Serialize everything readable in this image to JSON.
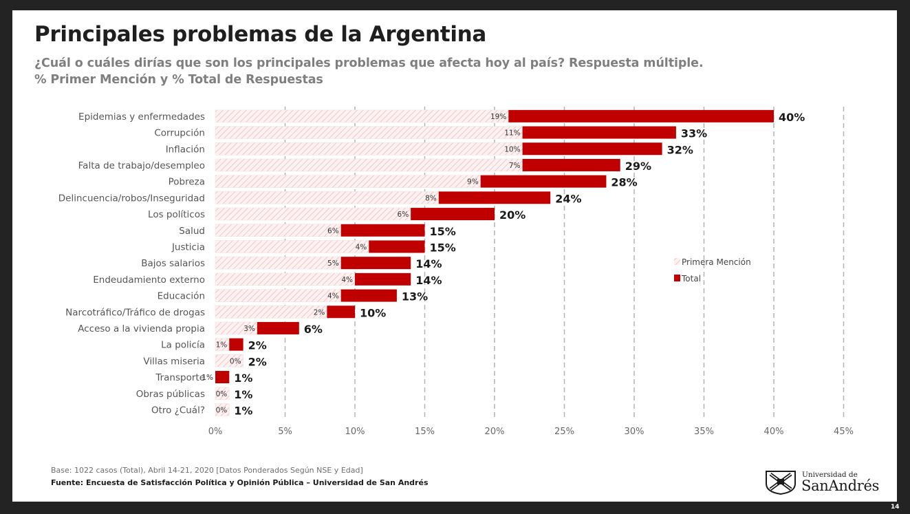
{
  "header": {
    "title": "Principales problemas de la Argentina",
    "subtitle_line1": "¿Cuál o cuáles dirías que son los principales problemas que afecta hoy al país? Respuesta múltiple.",
    "subtitle_line2": "% Primer Mención y % Total de Respuestas"
  },
  "chart_data": {
    "type": "bar",
    "orientation": "horizontal",
    "title": "",
    "xlabel": "",
    "ylabel": "",
    "categories": [
      "Epidemias y enfermedades",
      "Corrupción",
      "Inflación",
      "Falta de trabajo/desempleo",
      "Pobreza",
      "Delincuencia/robos/Inseguridad",
      "Los políticos",
      "Salud",
      "Justicia",
      "Bajos salarios",
      "Endeudamiento externo",
      "Educación",
      "Narcotráfico/Tráfico de drogas",
      "Acceso a la vivienda propia",
      "La policía",
      "Villas miseria",
      "Transporte",
      "Obras públicas",
      "Otro ¿Cuál?"
    ],
    "series": [
      {
        "name": "Primera Mención",
        "color": "#f6dcdc",
        "values": [
          19,
          11,
          10,
          7,
          9,
          8,
          6,
          6,
          4,
          5,
          4,
          4,
          2,
          3,
          1,
          0,
          1,
          0,
          0
        ],
        "labels": [
          "19%",
          "11%",
          "10%",
          "7%",
          "9%",
          "8%",
          "6%",
          "6%",
          "4%",
          "5%",
          "4%",
          "4%",
          "2%",
          "3%",
          "1%",
          "0%",
          "1%",
          "0%",
          "0%"
        ]
      },
      {
        "name": "Total",
        "color": "#c00000",
        "values": [
          40,
          33,
          32,
          29,
          28,
          24,
          20,
          15,
          15,
          14,
          14,
          13,
          10,
          6,
          2,
          2,
          1,
          1,
          1
        ],
        "labels": [
          "40%",
          "33%",
          "32%",
          "29%",
          "28%",
          "24%",
          "20%",
          "15%",
          "15%",
          "14%",
          "14%",
          "13%",
          "10%",
          "6%",
          "2%",
          "2%",
          "1%",
          "1%",
          "1%"
        ]
      }
    ],
    "xlim": [
      0,
      45
    ],
    "x_ticks": [
      0,
      5,
      10,
      15,
      20,
      25,
      30,
      35,
      40,
      45
    ],
    "x_tick_labels": [
      "0%",
      "5%",
      "10%",
      "15%",
      "20%",
      "25%",
      "30%",
      "35%",
      "40%",
      "45%"
    ],
    "grid": "vertical dashed",
    "legend_position": "right"
  },
  "footer": {
    "base": "Base: 1022 casos (Total), Abril 14-21, 2020 [Datos Ponderados Según NSE y Edad]",
    "source": "Fuente: Encuesta de Satisfacción Política y Opinión Pública – Universidad de San Andrés"
  },
  "logo": {
    "line1": "Universidad de",
    "line2": "SanAndrés"
  },
  "page_number": "14"
}
